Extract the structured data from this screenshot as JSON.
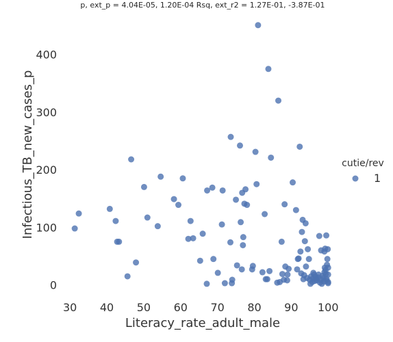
{
  "chart_data": {
    "type": "scatter",
    "title": "p, ext_p = 4.04E-05, 1.20E-04 Rsq, ext_r2 = 1.27E-01, -3.87E-01",
    "xlabel": "Literacy_rate_adult_male",
    "ylabel": "Infectious_TB_new_cases_p",
    "xlim": [
      27,
      102
    ],
    "ylim": [
      -10,
      465
    ],
    "xticks": [
      30,
      40,
      50,
      60,
      70,
      80,
      90,
      100
    ],
    "yticks": [
      0,
      100,
      200,
      300,
      400
    ],
    "grid": false,
    "legend": {
      "title": "cutie/rev",
      "entries": [
        "1"
      ],
      "placement": "right"
    },
    "marker_color": "#4c72b0",
    "series": [
      {
        "name": "1",
        "points": [
          [
            31.3,
            98
          ],
          [
            32.4,
            124
          ],
          [
            40.8,
            132
          ],
          [
            42.4,
            111
          ],
          [
            42.8,
            75
          ],
          [
            43.3,
            75
          ],
          [
            45.6,
            15
          ],
          [
            46.6,
            218
          ],
          [
            47.9,
            39
          ],
          [
            50.1,
            170
          ],
          [
            51.0,
            117
          ],
          [
            53.8,
            102
          ],
          [
            54.6,
            188
          ],
          [
            58.2,
            149
          ],
          [
            59.4,
            139
          ],
          [
            60.6,
            185
          ],
          [
            62.1,
            80
          ],
          [
            62.7,
            111
          ],
          [
            63.4,
            81
          ],
          [
            65.3,
            42
          ],
          [
            66.0,
            89
          ],
          [
            67.1,
            2
          ],
          [
            67.2,
            164
          ],
          [
            68.6,
            169
          ],
          [
            68.9,
            45
          ],
          [
            70.1,
            21
          ],
          [
            71.2,
            105
          ],
          [
            71.4,
            164
          ],
          [
            72.0,
            3
          ],
          [
            73.5,
            74
          ],
          [
            73.6,
            257
          ],
          [
            73.9,
            3
          ],
          [
            74.0,
            9
          ],
          [
            75.0,
            148
          ],
          [
            75.3,
            34
          ],
          [
            76.1,
            242
          ],
          [
            76.3,
            109
          ],
          [
            76.6,
            27
          ],
          [
            76.7,
            160
          ],
          [
            76.9,
            69
          ],
          [
            77.0,
            83
          ],
          [
            77.3,
            141
          ],
          [
            77.6,
            166
          ],
          [
            78.0,
            139
          ],
          [
            79.4,
            27
          ],
          [
            79.6,
            33
          ],
          [
            80.3,
            231
          ],
          [
            80.6,
            175
          ],
          [
            81.0,
            451
          ],
          [
            82.2,
            22
          ],
          [
            82.8,
            123
          ],
          [
            83.1,
            10
          ],
          [
            83.5,
            10
          ],
          [
            83.8,
            375
          ],
          [
            84.1,
            24
          ],
          [
            84.5,
            221
          ],
          [
            86.2,
            4
          ],
          [
            86.5,
            320
          ],
          [
            86.9,
            5
          ],
          [
            87.4,
            75
          ],
          [
            87.6,
            19
          ],
          [
            88.0,
            9
          ],
          [
            88.2,
            140
          ],
          [
            88.4,
            32
          ],
          [
            88.9,
            8
          ],
          [
            89.0,
            18
          ],
          [
            89.3,
            28
          ],
          [
            90.4,
            178
          ],
          [
            91.3,
            130
          ],
          [
            91.6,
            27
          ],
          [
            91.8,
            45
          ],
          [
            92.0,
            46
          ],
          [
            92.3,
            240
          ],
          [
            92.5,
            58
          ],
          [
            92.7,
            20
          ],
          [
            92.9,
            92
          ],
          [
            93.1,
            113
          ],
          [
            93.3,
            10
          ],
          [
            93.5,
            17
          ],
          [
            93.7,
            76
          ],
          [
            93.9,
            107
          ],
          [
            94.0,
            32
          ],
          [
            94.3,
            12
          ],
          [
            94.5,
            62
          ],
          [
            94.8,
            45
          ],
          [
            95.0,
            9
          ],
          [
            95.2,
            2
          ],
          [
            95.4,
            15
          ],
          [
            95.7,
            5
          ],
          [
            95.9,
            11
          ],
          [
            96.0,
            21
          ],
          [
            96.2,
            18
          ],
          [
            96.4,
            7
          ],
          [
            96.6,
            14
          ],
          [
            96.8,
            10
          ],
          [
            97.0,
            8
          ],
          [
            97.2,
            13
          ],
          [
            97.4,
            18
          ],
          [
            97.6,
            85
          ],
          [
            97.8,
            4
          ],
          [
            98.0,
            9
          ],
          [
            98.1,
            60
          ],
          [
            98.3,
            2
          ],
          [
            98.5,
            16
          ],
          [
            98.7,
            12
          ],
          [
            98.9,
            6
          ],
          [
            99.0,
            58
          ],
          [
            99.1,
            30
          ],
          [
            99.2,
            63
          ],
          [
            99.3,
            26
          ],
          [
            99.4,
            19
          ],
          [
            99.5,
            86
          ],
          [
            99.6,
            10
          ],
          [
            99.7,
            35
          ],
          [
            99.8,
            45
          ],
          [
            99.9,
            62
          ],
          [
            100.0,
            5
          ],
          [
            100.0,
            30
          ],
          [
            100.0,
            18
          ],
          [
            100.0,
            3
          ],
          [
            99.5,
            8
          ],
          [
            99.0,
            22
          ]
        ]
      }
    ]
  }
}
